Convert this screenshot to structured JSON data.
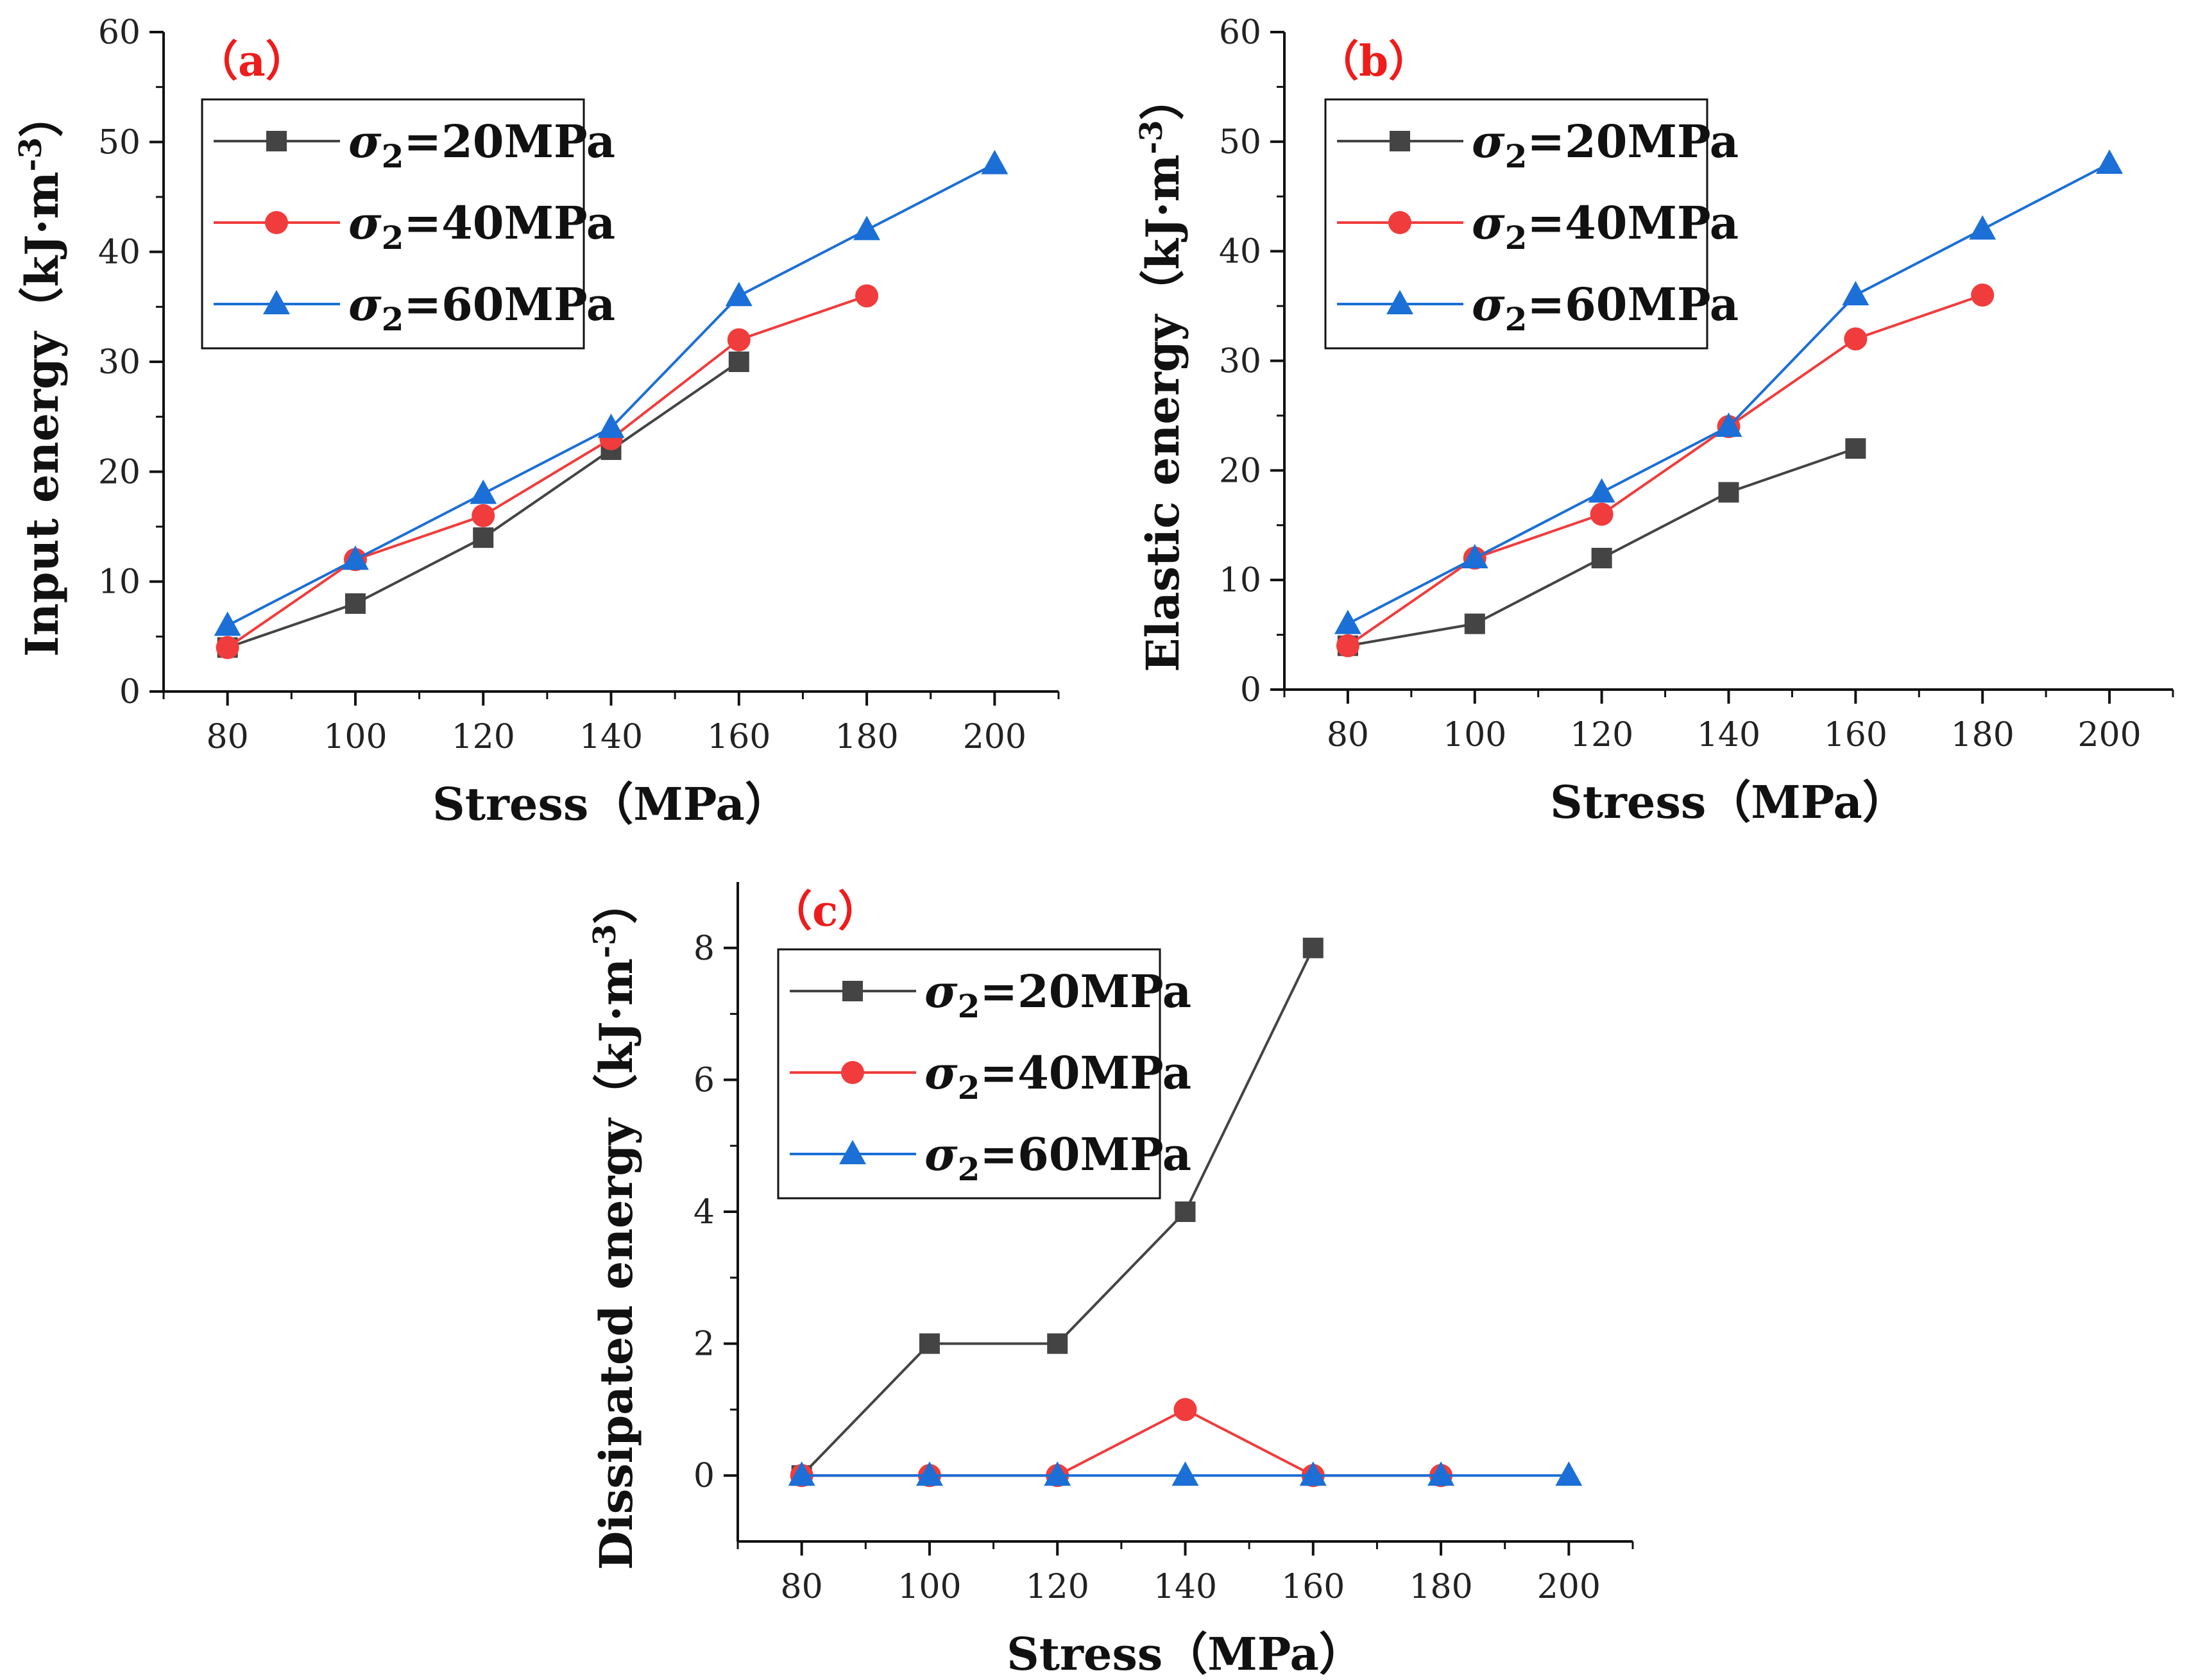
{
  "chart_data": [
    {
      "type": "line",
      "panel_label": "（a）",
      "xlabel": "Stress（MPa）",
      "ylabel": "Input energy（kJ·m⁻³）",
      "xlim": [
        70,
        210
      ],
      "ylim": [
        0,
        60
      ],
      "x_ticks": [
        "80",
        "100",
        "120",
        "140",
        "160",
        "180",
        "200"
      ],
      "y_ticks": [
        "0",
        "10",
        "20",
        "30",
        "40",
        "50",
        "60"
      ],
      "legend_position": "top-left",
      "series": [
        {
          "name": "σ2=20MPa",
          "color": "#444444",
          "marker": "square",
          "x": [
            80,
            100,
            120,
            140,
            160
          ],
          "values": [
            4,
            8,
            14,
            22,
            30
          ]
        },
        {
          "name": "σ2=40MPa",
          "color": "#f03c3c",
          "marker": "circle",
          "x": [
            80,
            100,
            120,
            140,
            160,
            180
          ],
          "values": [
            4,
            12,
            16,
            23,
            32,
            36
          ]
        },
        {
          "name": "σ2=60MPa",
          "color": "#1b6fd6",
          "marker": "triangle",
          "x": [
            80,
            100,
            120,
            140,
            160,
            180,
            200
          ],
          "values": [
            6,
            12,
            18,
            24,
            36,
            42,
            48
          ]
        }
      ]
    },
    {
      "type": "line",
      "panel_label": "（b）",
      "xlabel": "Stress（MPa）",
      "ylabel": "Elastic energy（kJ·m⁻³）",
      "xlim": [
        70,
        210
      ],
      "ylim": [
        0,
        60
      ],
      "x_ticks": [
        "80",
        "100",
        "120",
        "140",
        "160",
        "180",
        "200"
      ],
      "y_ticks": [
        "0",
        "10",
        "20",
        "30",
        "40",
        "50",
        "60"
      ],
      "legend_position": "top-left",
      "series": [
        {
          "name": "σ2=20MPa",
          "color": "#444444",
          "marker": "square",
          "x": [
            80,
            100,
            120,
            140,
            160
          ],
          "values": [
            4,
            6,
            12,
            18,
            22
          ]
        },
        {
          "name": "σ2=40MPa",
          "color": "#f03c3c",
          "marker": "circle",
          "x": [
            80,
            100,
            120,
            140,
            160,
            180
          ],
          "values": [
            4,
            12,
            16,
            24,
            32,
            36
          ]
        },
        {
          "name": "σ2=60MPa",
          "color": "#1b6fd6",
          "marker": "triangle",
          "x": [
            80,
            100,
            120,
            140,
            160,
            180,
            200
          ],
          "values": [
            6,
            12,
            18,
            24,
            36,
            42,
            48
          ]
        }
      ]
    },
    {
      "type": "line",
      "panel_label": "（c）",
      "xlabel": "Stress（MPa）",
      "ylabel": "Dissipated energy（kJ·m⁻³）",
      "xlim": [
        70,
        210
      ],
      "ylim": [
        -1,
        9
      ],
      "x_ticks": [
        "80",
        "100",
        "120",
        "140",
        "160",
        "180",
        "200"
      ],
      "y_ticks": [
        "0",
        "2",
        "4",
        "6",
        "8"
      ],
      "legend_position": "top-left",
      "series": [
        {
          "name": "σ2=20MPa",
          "color": "#444444",
          "marker": "square",
          "x": [
            80,
            100,
            120,
            140,
            160
          ],
          "values": [
            0,
            2,
            2,
            4,
            8
          ]
        },
        {
          "name": "σ2=40MPa",
          "color": "#f03c3c",
          "marker": "circle",
          "x": [
            80,
            100,
            120,
            140,
            160,
            180
          ],
          "values": [
            0,
            0,
            0,
            1,
            0,
            0
          ]
        },
        {
          "name": "σ2=60MPa",
          "color": "#1b6fd6",
          "marker": "triangle",
          "x": [
            80,
            100,
            120,
            140,
            160,
            180,
            200
          ],
          "values": [
            0,
            0,
            0,
            0,
            0,
            0,
            0
          ]
        }
      ]
    }
  ]
}
